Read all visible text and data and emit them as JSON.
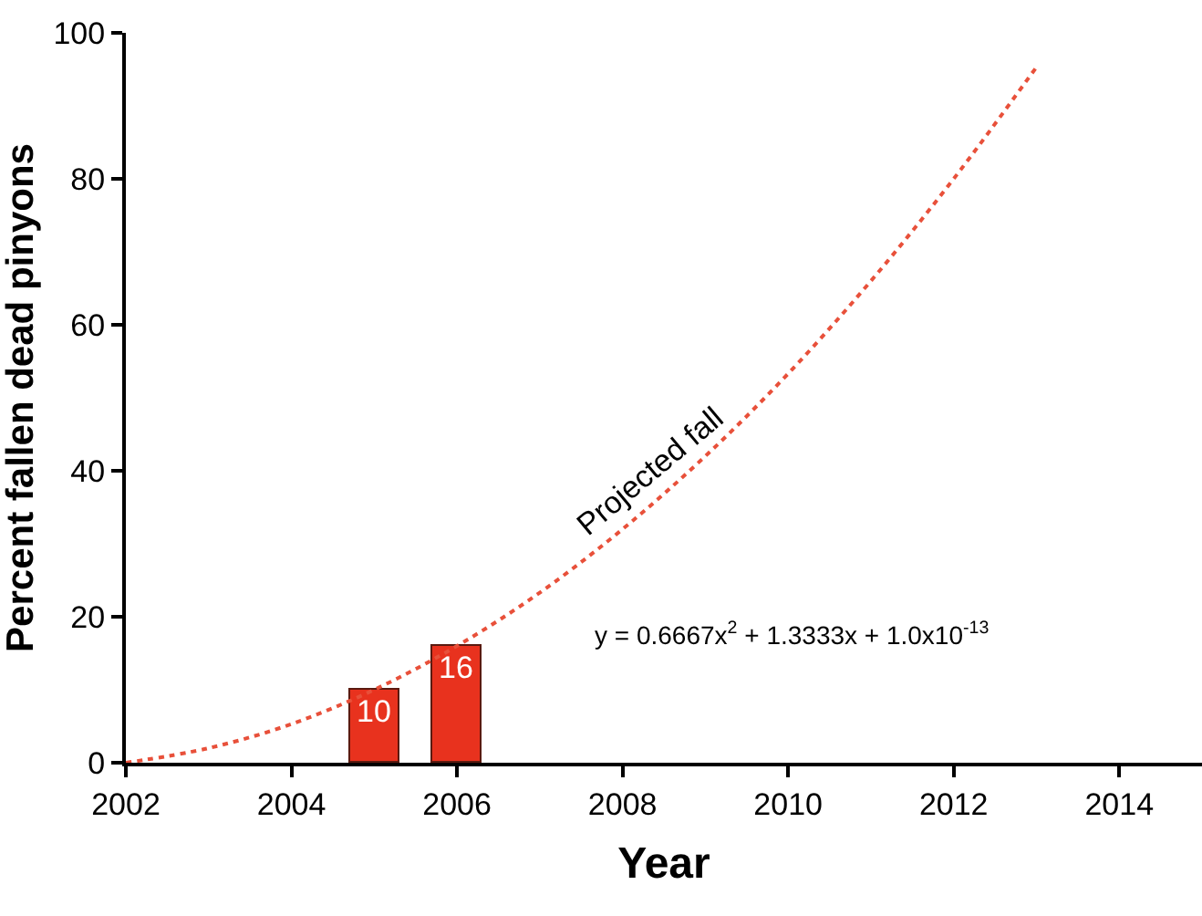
{
  "chart_data": {
    "type": "bar",
    "xlabel": "Year",
    "ylabel": "Percent fallen dead pinyons",
    "xlim": [
      2002,
      2015
    ],
    "xticks": [
      2002,
      2004,
      2006,
      2008,
      2010,
      2012,
      2014
    ],
    "ylim": [
      0,
      100
    ],
    "yticks": [
      0,
      20,
      40,
      60,
      80,
      100
    ],
    "series": [
      {
        "color": "#e8321e",
        "x": [
          2005,
          2006
        ],
        "values": [
          10,
          16
        ],
        "value_labels": [
          "10",
          "16"
        ]
      },
      {
        "type": "line",
        "color": "#e8503a",
        "line_style": "dotted",
        "marker": "none",
        "x": [
          2002,
          2003,
          2004,
          2005,
          2006,
          2007,
          2008,
          2009,
          2010,
          2011,
          2012,
          2013
        ],
        "values": [
          0,
          2,
          5.3,
          10,
          16,
          23.3,
          32,
          42,
          53.3,
          66,
          80,
          95.3
        ]
      }
    ],
    "annotations": [
      {
        "text": "Projected fall",
        "x": 2008.5,
        "y": 37
      },
      "y = 0.6667x$^{2}$ + 1.3333x + 1.0x10$^{-13}$"
    ]
  }
}
